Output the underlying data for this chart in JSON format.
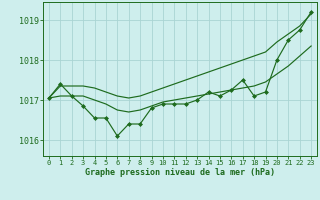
{
  "bg_color": "#ceeeed",
  "plot_bg_color": "#ceeeed",
  "grid_color": "#aad4d3",
  "line_color": "#1e6b1e",
  "marker_color": "#1e6b1e",
  "xlabel": "Graphe pression niveau de la mer (hPa)",
  "xlabel_color": "#1e6b1e",
  "tick_color": "#1e6b1e",
  "ylim": [
    1015.6,
    1019.45
  ],
  "xlim": [
    -0.5,
    23.5
  ],
  "yticks": [
    1016,
    1017,
    1018,
    1019
  ],
  "xticks": [
    0,
    1,
    2,
    3,
    4,
    5,
    6,
    7,
    8,
    9,
    10,
    11,
    12,
    13,
    14,
    15,
    16,
    17,
    18,
    19,
    20,
    21,
    22,
    23
  ],
  "hours": [
    0,
    1,
    2,
    3,
    4,
    5,
    6,
    7,
    8,
    9,
    10,
    11,
    12,
    13,
    14,
    15,
    16,
    17,
    18,
    19,
    20,
    21,
    22,
    23
  ],
  "series_instant": [
    1017.05,
    1017.4,
    1017.1,
    1016.85,
    1016.55,
    1016.55,
    1016.1,
    1016.4,
    1016.4,
    1016.8,
    1016.9,
    1016.9,
    1016.9,
    1017.0,
    1017.2,
    1017.1,
    1017.25,
    1017.5,
    1017.1,
    1017.2,
    1018.0,
    1018.5,
    1018.75,
    1019.2
  ],
  "series_smooth_low": [
    1017.05,
    1017.1,
    1017.1,
    1017.1,
    1017.0,
    1016.9,
    1016.75,
    1016.7,
    1016.75,
    1016.85,
    1016.95,
    1017.0,
    1017.05,
    1017.1,
    1017.15,
    1017.2,
    1017.25,
    1017.3,
    1017.35,
    1017.45,
    1017.65,
    1017.85,
    1018.1,
    1018.35
  ],
  "series_smooth_high": [
    1017.05,
    1017.35,
    1017.35,
    1017.35,
    1017.3,
    1017.2,
    1017.1,
    1017.05,
    1017.1,
    1017.2,
    1017.3,
    1017.4,
    1017.5,
    1017.6,
    1017.7,
    1017.8,
    1017.9,
    1018.0,
    1018.1,
    1018.2,
    1018.45,
    1018.65,
    1018.85,
    1019.15
  ]
}
